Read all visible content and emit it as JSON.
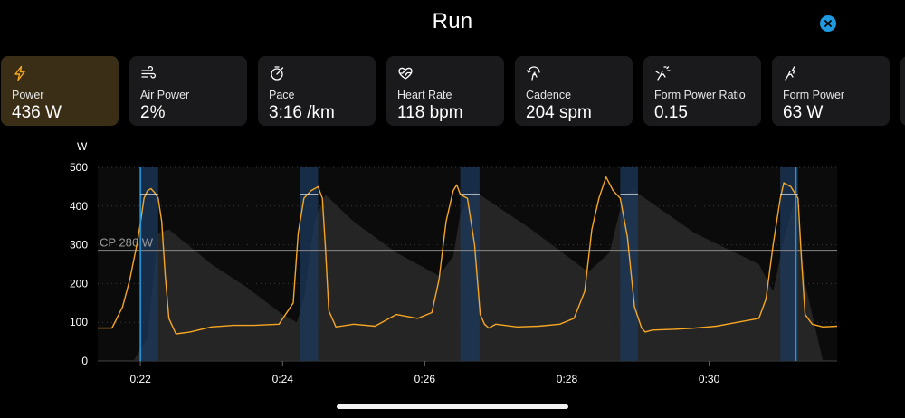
{
  "header": {
    "title": "Run",
    "close_icon": "close-icon"
  },
  "accent_color": "#f5a623",
  "highlight_color": "#1f9ae0",
  "metrics": [
    {
      "label": "Power",
      "value": "436 W",
      "icon": "lightning-icon",
      "active": true
    },
    {
      "label": "Air Power",
      "value": "2%",
      "icon": "wind-icon",
      "active": false
    },
    {
      "label": "Pace",
      "value": "3:16 /km",
      "icon": "stopwatch-icon",
      "active": false
    },
    {
      "label": "Heart Rate",
      "value": "118 bpm",
      "icon": "heart-rate-icon",
      "active": false
    },
    {
      "label": "Cadence",
      "value": "204 spm",
      "icon": "cadence-icon",
      "active": false
    },
    {
      "label": "Form Power Ratio",
      "value": "0.15",
      "icon": "form-power-ratio-icon",
      "active": false
    },
    {
      "label": "Form Power",
      "value": "63 W",
      "icon": "form-power-icon",
      "active": false
    }
  ],
  "chart_data": {
    "type": "line",
    "y_unit": "W",
    "ylim": [
      0,
      500
    ],
    "y_ticks": [
      "0",
      "100",
      "200",
      "300",
      "400",
      "500"
    ],
    "x_ticks": [
      "0:22",
      "0:24",
      "0:26",
      "0:28",
      "0:30"
    ],
    "x_tick_minutes": [
      22,
      24,
      26,
      28,
      30
    ],
    "xlim_minutes": [
      21.4,
      31.8
    ],
    "cp_label": "CP 286 W",
    "cp_value": 286,
    "selection_minutes": [
      22.0,
      31.22
    ],
    "selection_value": 430,
    "interval_bands_minutes": [
      [
        22.0,
        22.25
      ],
      [
        24.25,
        24.5
      ],
      [
        26.5,
        26.77
      ],
      [
        28.75,
        29.0
      ],
      [
        31.0,
        31.25
      ]
    ],
    "power_series": {
      "x_minutes": [
        21.4,
        21.6,
        21.75,
        21.85,
        21.95,
        22.0,
        22.05,
        22.1,
        22.15,
        22.2,
        22.25,
        22.3,
        22.35,
        22.4,
        22.5,
        22.7,
        23.0,
        23.3,
        23.6,
        23.95,
        24.15,
        24.22,
        24.3,
        24.4,
        24.5,
        24.56,
        24.6,
        24.65,
        24.75,
        25.0,
        25.3,
        25.6,
        25.9,
        26.1,
        26.2,
        26.3,
        26.4,
        26.45,
        26.5,
        26.6,
        26.7,
        26.78,
        26.84,
        26.9,
        27.0,
        27.3,
        27.6,
        27.9,
        28.1,
        28.25,
        28.35,
        28.45,
        28.55,
        28.65,
        28.75,
        28.85,
        28.95,
        29.05,
        29.1,
        29.2,
        29.5,
        29.8,
        30.1,
        30.4,
        30.7,
        30.8,
        30.9,
        31.0,
        31.05,
        31.15,
        31.25,
        31.3,
        31.35,
        31.45,
        31.6,
        31.8
      ],
      "values": [
        85,
        85,
        140,
        210,
        300,
        355,
        420,
        440,
        445,
        435,
        420,
        360,
        220,
        110,
        70,
        75,
        88,
        92,
        92,
        95,
        150,
        330,
        420,
        440,
        450,
        420,
        300,
        130,
        88,
        95,
        90,
        120,
        110,
        125,
        210,
        360,
        440,
        455,
        430,
        420,
        300,
        120,
        95,
        85,
        95,
        88,
        90,
        95,
        110,
        180,
        340,
        420,
        475,
        440,
        420,
        320,
        140,
        85,
        75,
        80,
        82,
        85,
        90,
        100,
        110,
        160,
        300,
        420,
        460,
        450,
        420,
        260,
        120,
        95,
        88,
        90
      ]
    },
    "shade_series": {
      "x_minutes": [
        21.4,
        21.9,
        22.1,
        22.25,
        22.4,
        23.0,
        23.5,
        24.0,
        24.2,
        24.3,
        24.45,
        24.6,
        25.0,
        25.6,
        26.2,
        26.4,
        26.5,
        26.7,
        26.85,
        27.5,
        28.3,
        28.6,
        28.8,
        28.95,
        29.1,
        29.8,
        30.7,
        30.9,
        31.05,
        31.22,
        31.35,
        31.6,
        31.8
      ],
      "values": [
        0,
        0,
        60,
        330,
        340,
        250,
        190,
        120,
        100,
        160,
        360,
        430,
        360,
        280,
        220,
        270,
        380,
        440,
        420,
        340,
        230,
        280,
        430,
        440,
        420,
        330,
        250,
        180,
        310,
        430,
        200,
        0,
        0
      ]
    }
  }
}
